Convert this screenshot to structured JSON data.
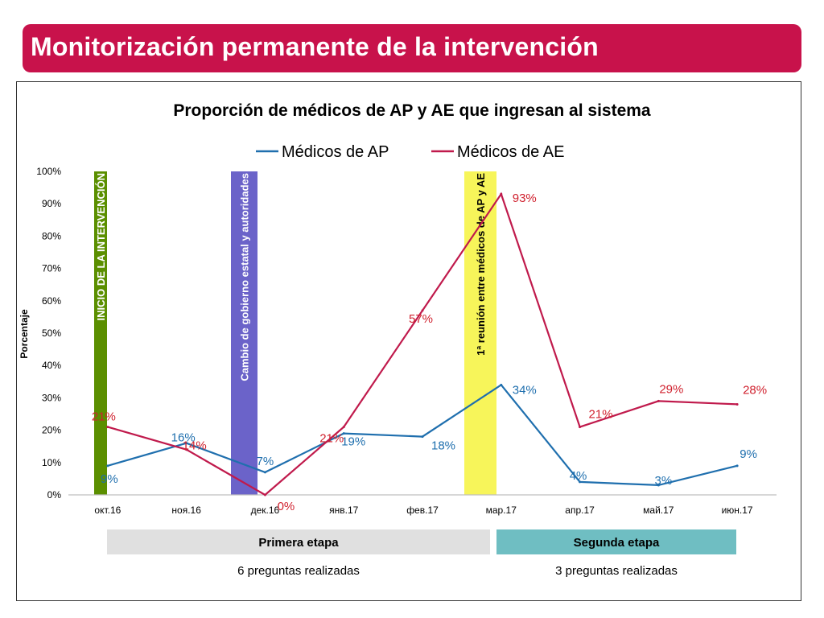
{
  "slide": {
    "title": "Monitorización permanente de la intervención"
  },
  "colors": {
    "title_bar": "#c8124b",
    "ap": "#1f6fae",
    "ae": "#c01a4c",
    "ap_label": "#1f6fae",
    "ae_label": "#d0212e",
    "event_inicio": "#5b8f00",
    "event_gobierno": "#6b63c9",
    "event_reunion": "#f7f55a",
    "phase_first": "#e0e0e0",
    "phase_second": "#6fbec2"
  },
  "chart_data": {
    "type": "line",
    "title": "Proporción de médicos de AP y AE que ingresan al sistema",
    "ylabel": "Porcentaje",
    "xlabel": "",
    "ylim": [
      0,
      100
    ],
    "yticks": [
      "0%",
      "10%",
      "20%",
      "30%",
      "40%",
      "50%",
      "60%",
      "70%",
      "80%",
      "90%",
      "100%"
    ],
    "categories": [
      "окт.16",
      "ноя.16",
      "дек.16",
      "янв.17",
      "фев.17",
      "мар.17",
      "апр.17",
      "май.17",
      "июн.17"
    ],
    "series": [
      {
        "name": "Médicos de AP",
        "values": [
          9,
          16,
          7,
          19,
          18,
          34,
          4,
          3,
          9
        ],
        "labels": [
          "9%",
          "16%",
          "7%",
          "19%",
          "18%",
          "34%",
          "4%",
          "3%",
          "9%"
        ]
      },
      {
        "name": "Médicos de AE",
        "values": [
          21,
          14,
          0,
          21,
          57,
          93,
          21,
          29,
          28
        ],
        "labels": [
          "21%",
          "14%",
          "0%",
          "21%",
          "57%",
          "93%",
          "21%",
          "29%",
          "28%"
        ]
      }
    ],
    "legend": "top-center",
    "events": [
      {
        "label": "INICIO DE LA INTERVENCIÓN",
        "at": "окт.16"
      },
      {
        "label": "Cambio de gobierno estatal y autoridades",
        "at": "дек.16"
      },
      {
        "label": "1ª reunión entre médicos de AP y AE",
        "at": "мар.17"
      }
    ],
    "phases": [
      {
        "label": "Primera etapa",
        "note": "6 preguntas realizadas"
      },
      {
        "label": "Segunda etapa",
        "note": "3 preguntas realizadas"
      }
    ]
  }
}
